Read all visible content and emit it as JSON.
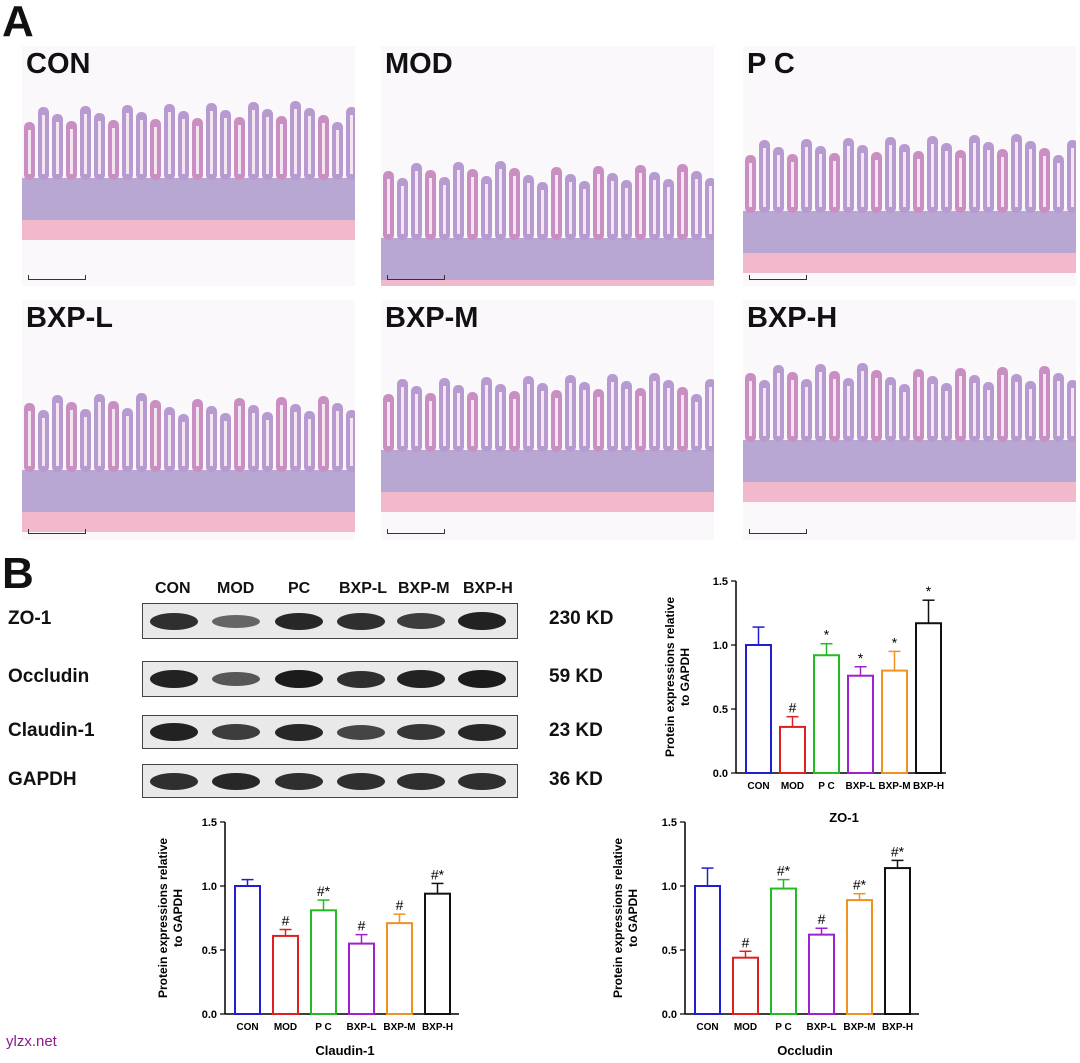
{
  "panels": {
    "a_label": "A",
    "b_label": "B"
  },
  "histology": [
    {
      "label": "CON"
    },
    {
      "label": "MOD"
    },
    {
      "label": "P C"
    },
    {
      "label": "BXP-L"
    },
    {
      "label": "BXP-M"
    },
    {
      "label": "BXP-H"
    }
  ],
  "western_blot": {
    "lanes": [
      "CON",
      "MOD",
      "PC",
      "BXP-L",
      "BXP-M",
      "BXP-H"
    ],
    "rows": [
      {
        "protein": "ZO-1",
        "size": "230 KD",
        "intensity": [
          0.85,
          0.45,
          0.9,
          0.85,
          0.75,
          0.95
        ]
      },
      {
        "protein": "Occludin",
        "size": "59 KD",
        "intensity": [
          0.95,
          0.55,
          1.0,
          0.85,
          0.95,
          1.0
        ]
      },
      {
        "protein": "Claudin-1",
        "size": "23 KD",
        "intensity": [
          0.95,
          0.75,
          0.9,
          0.7,
          0.8,
          0.9
        ]
      },
      {
        "protein": "GAPDH",
        "size": "36 KD",
        "intensity": [
          0.85,
          0.9,
          0.85,
          0.85,
          0.85,
          0.85
        ]
      }
    ]
  },
  "chart_data": [
    {
      "type": "bar",
      "title": "ZO-1",
      "ylabel": "Protein expressions relative\nto GAPDH",
      "categories": [
        "CON",
        "MOD",
        "P C",
        "BXP-L",
        "BXP-M",
        "BXP-H"
      ],
      "values": [
        1.0,
        0.36,
        0.92,
        0.76,
        0.8,
        1.17
      ],
      "errors": [
        0.14,
        0.08,
        0.09,
        0.07,
        0.15,
        0.18
      ],
      "annotations": [
        "",
        "#",
        "*",
        "*",
        "*",
        "*"
      ],
      "colors": [
        "#1f1fcf",
        "#e02020",
        "#22bb22",
        "#a020d0",
        "#f0921e",
        "#111111"
      ],
      "ylim": [
        0,
        1.5
      ],
      "yticks": [
        "0.0",
        "0.5",
        "1.0",
        "1.5"
      ]
    },
    {
      "type": "bar",
      "title": "Claudin-1",
      "ylabel": "Protein expressions relative\nto GAPDH",
      "categories": [
        "CON",
        "MOD",
        "P C",
        "BXP-L",
        "BXP-M",
        "BXP-H"
      ],
      "values": [
        1.0,
        0.61,
        0.81,
        0.55,
        0.71,
        0.94
      ],
      "errors": [
        0.05,
        0.05,
        0.08,
        0.07,
        0.07,
        0.08
      ],
      "annotations": [
        "",
        "#",
        "#*",
        "#",
        "#",
        "#*"
      ],
      "colors": [
        "#1f1fcf",
        "#e02020",
        "#22bb22",
        "#a020d0",
        "#f0921e",
        "#111111"
      ],
      "ylim": [
        0,
        1.5
      ],
      "yticks": [
        "0.0",
        "0.5",
        "1.0",
        "1.5"
      ]
    },
    {
      "type": "bar",
      "title": "Occludin",
      "ylabel": "Protein expressions relative\nto GAPDH",
      "categories": [
        "CON",
        "MOD",
        "P C",
        "BXP-L",
        "BXP-M",
        "BXP-H"
      ],
      "values": [
        1.0,
        0.44,
        0.98,
        0.62,
        0.89,
        1.14
      ],
      "errors": [
        0.14,
        0.05,
        0.07,
        0.05,
        0.05,
        0.06
      ],
      "annotations": [
        "",
        "#",
        "#*",
        "#",
        "#*",
        "#*"
      ],
      "colors": [
        "#1f1fcf",
        "#e02020",
        "#22bb22",
        "#a020d0",
        "#f0921e",
        "#111111"
      ],
      "ylim": [
        0,
        1.5
      ],
      "yticks": [
        "0.0",
        "0.5",
        "1.0",
        "1.5"
      ]
    }
  ],
  "watermark": "ylzx.net"
}
